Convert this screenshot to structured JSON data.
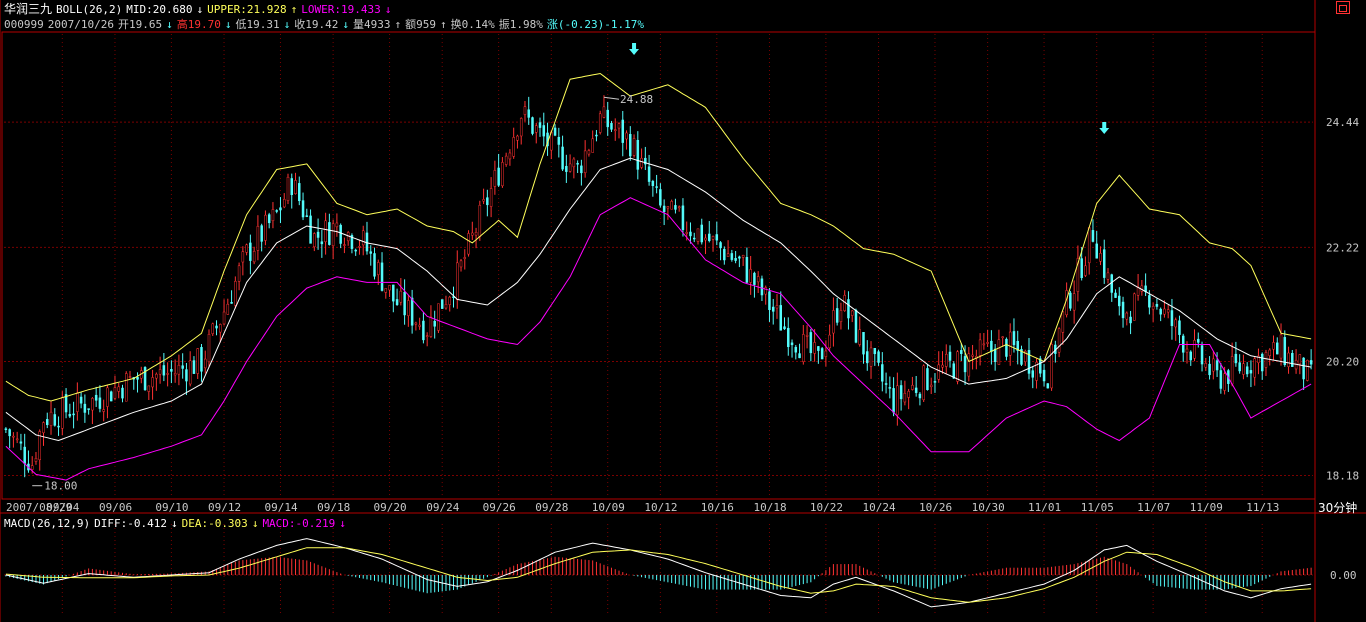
{
  "header": {
    "name": "华润三九",
    "indicator": "BOLL(26,2)",
    "mid": "MID:20.680",
    "upper": "UPPER:21.928",
    "lower": "LOWER:19.433",
    "code": "000999",
    "date": "2007/10/26",
    "open": "开19.65",
    "high": "高19.70",
    "low": "低19.31",
    "close": "收19.42",
    "volume": "量4933",
    "amount": "额959",
    "turnover": "换0.14%",
    "amplitude": "振1.98%",
    "change": "涨(-0.23)-1.17%"
  },
  "macd_header": {
    "label": "MACD(26,12,9)",
    "diff": "DIFF:-0.412",
    "dea": "DEA:-0.303",
    "macd": "MACD:-0.219"
  },
  "period_label": "30分钟",
  "corner_icon": "restore-icon",
  "colors": {
    "up": "#ff3232",
    "down": "#54fcfc",
    "upper": "#ffff5a",
    "mid": "#ffffff",
    "lower": "#ff00ff",
    "frame": "#b40000",
    "grid": "#7a0000",
    "axis_text": "#c8c8c8"
  },
  "chart_data": [
    {
      "type": "candlestick",
      "name": "price",
      "x_ticks": [
        "2007/08/29",
        "09/04",
        "09/06",
        "09/10",
        "09/12",
        "09/14",
        "09/18",
        "09/20",
        "09/24",
        "09/26",
        "09/28",
        "10/09",
        "10/12",
        "10/16",
        "10/18",
        "10/22",
        "10/24",
        "10/26",
        "10/30",
        "11/01",
        "11/05",
        "11/07",
        "11/09",
        "11/13"
      ],
      "y_ticks": [
        18.18,
        20.2,
        22.22,
        24.44
      ],
      "ylim": [
        17.8,
        26.0
      ],
      "grid": true,
      "annotations": [
        {
          "text": "24.88",
          "value": 24.88,
          "label": "high"
        },
        {
          "text": "18.00",
          "value": 18.0,
          "label": "low"
        }
      ],
      "anchors": [
        [
          0,
          19.0
        ],
        [
          7,
          18.4
        ],
        [
          10,
          19.2
        ],
        [
          23,
          19.5
        ],
        [
          34,
          19.9
        ],
        [
          44,
          20.0
        ],
        [
          52,
          20.2
        ],
        [
          58,
          21.1
        ],
        [
          64,
          22.1
        ],
        [
          72,
          22.8
        ],
        [
          76,
          23.4
        ],
        [
          82,
          22.4
        ],
        [
          88,
          22.6
        ],
        [
          95,
          22.3
        ],
        [
          103,
          21.3
        ],
        [
          112,
          20.8
        ],
        [
          120,
          21.7
        ],
        [
          130,
          23.4
        ],
        [
          137,
          24.6
        ],
        [
          145,
          24.0
        ],
        [
          152,
          23.6
        ],
        [
          158,
          24.5
        ],
        [
          166,
          24.1
        ],
        [
          174,
          22.9
        ],
        [
          186,
          22.4
        ],
        [
          196,
          21.9
        ],
        [
          207,
          20.8
        ],
        [
          216,
          20.2
        ],
        [
          222,
          21.3
        ],
        [
          229,
          20.3
        ],
        [
          236,
          19.5
        ],
        [
          247,
          20.0
        ],
        [
          258,
          20.3
        ],
        [
          266,
          20.5
        ],
        [
          277,
          20.0
        ],
        [
          282,
          21.2
        ],
        [
          289,
          22.5
        ],
        [
          296,
          21.0
        ],
        [
          304,
          21.4
        ],
        [
          314,
          20.5
        ],
        [
          322,
          19.9
        ],
        [
          331,
          20.2
        ],
        [
          339,
          20.4
        ],
        [
          347,
          19.9
        ]
      ],
      "boll": {
        "upper": [
          [
            0,
            19.85
          ],
          [
            6,
            19.6
          ],
          [
            12,
            19.5
          ],
          [
            22,
            19.7
          ],
          [
            34,
            19.9
          ],
          [
            44,
            20.3
          ],
          [
            52,
            20.7
          ],
          [
            58,
            21.8
          ],
          [
            64,
            22.8
          ],
          [
            72,
            23.6
          ],
          [
            80,
            23.7
          ],
          [
            88,
            23.0
          ],
          [
            96,
            22.8
          ],
          [
            104,
            22.9
          ],
          [
            112,
            22.6
          ],
          [
            119,
            22.5
          ],
          [
            124,
            22.3
          ],
          [
            131,
            22.7
          ],
          [
            136,
            22.4
          ],
          [
            142,
            23.7
          ],
          [
            150,
            25.2
          ],
          [
            158,
            25.3
          ],
          [
            166,
            24.9
          ],
          [
            176,
            25.1
          ],
          [
            186,
            24.7
          ],
          [
            196,
            23.8
          ],
          [
            206,
            23.0
          ],
          [
            214,
            22.8
          ],
          [
            220,
            22.6
          ],
          [
            228,
            22.2
          ],
          [
            236,
            22.1
          ],
          [
            246,
            21.8
          ],
          [
            256,
            20.2
          ],
          [
            266,
            20.5
          ],
          [
            276,
            20.2
          ],
          [
            282,
            21.3
          ],
          [
            290,
            23.0
          ],
          [
            296,
            23.5
          ],
          [
            304,
            22.9
          ],
          [
            312,
            22.8
          ],
          [
            320,
            22.3
          ],
          [
            326,
            22.2
          ],
          [
            331,
            21.9
          ],
          [
            339,
            20.7
          ],
          [
            347,
            20.6
          ]
        ],
        "mid": [
          [
            0,
            19.3
          ],
          [
            8,
            18.9
          ],
          [
            14,
            18.8
          ],
          [
            22,
            19.0
          ],
          [
            34,
            19.3
          ],
          [
            44,
            19.5
          ],
          [
            52,
            19.8
          ],
          [
            58,
            20.7
          ],
          [
            64,
            21.6
          ],
          [
            72,
            22.3
          ],
          [
            80,
            22.6
          ],
          [
            88,
            22.5
          ],
          [
            96,
            22.3
          ],
          [
            104,
            22.2
          ],
          [
            112,
            21.8
          ],
          [
            120,
            21.3
          ],
          [
            128,
            21.2
          ],
          [
            136,
            21.6
          ],
          [
            142,
            22.1
          ],
          [
            150,
            22.9
          ],
          [
            158,
            23.6
          ],
          [
            166,
            23.8
          ],
          [
            176,
            23.6
          ],
          [
            186,
            23.2
          ],
          [
            196,
            22.7
          ],
          [
            206,
            22.3
          ],
          [
            214,
            21.8
          ],
          [
            220,
            21.4
          ],
          [
            228,
            21.0
          ],
          [
            236,
            20.6
          ],
          [
            246,
            20.1
          ],
          [
            256,
            19.8
          ],
          [
            266,
            19.9
          ],
          [
            276,
            20.2
          ],
          [
            282,
            20.6
          ],
          [
            290,
            21.4
          ],
          [
            296,
            21.7
          ],
          [
            304,
            21.4
          ],
          [
            312,
            21.1
          ],
          [
            322,
            20.6
          ],
          [
            331,
            20.3
          ],
          [
            339,
            20.2
          ],
          [
            347,
            20.1
          ]
        ],
        "lower": [
          [
            0,
            18.7
          ],
          [
            8,
            18.2
          ],
          [
            16,
            18.1
          ],
          [
            22,
            18.3
          ],
          [
            34,
            18.5
          ],
          [
            44,
            18.7
          ],
          [
            52,
            18.9
          ],
          [
            58,
            19.5
          ],
          [
            64,
            20.2
          ],
          [
            72,
            21.0
          ],
          [
            80,
            21.5
          ],
          [
            88,
            21.7
          ],
          [
            96,
            21.6
          ],
          [
            104,
            21.6
          ],
          [
            112,
            21.0
          ],
          [
            120,
            20.8
          ],
          [
            128,
            20.6
          ],
          [
            136,
            20.5
          ],
          [
            142,
            20.9
          ],
          [
            150,
            21.7
          ],
          [
            158,
            22.8
          ],
          [
            166,
            23.1
          ],
          [
            176,
            22.8
          ],
          [
            186,
            22.0
          ],
          [
            196,
            21.6
          ],
          [
            206,
            21.4
          ],
          [
            214,
            20.8
          ],
          [
            220,
            20.3
          ],
          [
            228,
            19.8
          ],
          [
            236,
            19.3
          ],
          [
            246,
            18.6
          ],
          [
            256,
            18.6
          ],
          [
            266,
            19.2
          ],
          [
            276,
            19.5
          ],
          [
            282,
            19.4
          ],
          [
            290,
            19.0
          ],
          [
            296,
            18.8
          ],
          [
            304,
            19.2
          ],
          [
            312,
            20.5
          ],
          [
            320,
            20.5
          ],
          [
            326,
            19.8
          ],
          [
            331,
            19.2
          ],
          [
            339,
            19.5
          ],
          [
            347,
            19.8
          ]
        ]
      }
    },
    {
      "type": "line",
      "name": "MACD(26,12,9)",
      "y_ticks": [
        0.0
      ],
      "ylim": [
        -0.9,
        0.9
      ],
      "series": [
        {
          "name": "DIFF",
          "values": [
            [
              0,
              0.0
            ],
            [
              10,
              -0.18
            ],
            [
              22,
              0.03
            ],
            [
              34,
              -0.05
            ],
            [
              44,
              0.0
            ],
            [
              54,
              0.05
            ],
            [
              62,
              0.35
            ],
            [
              72,
              0.65
            ],
            [
              80,
              0.8
            ],
            [
              90,
              0.6
            ],
            [
              100,
              0.35
            ],
            [
              112,
              -0.1
            ],
            [
              120,
              -0.25
            ],
            [
              128,
              -0.15
            ],
            [
              136,
              0.1
            ],
            [
              146,
              0.5
            ],
            [
              156,
              0.7
            ],
            [
              166,
              0.55
            ],
            [
              176,
              0.35
            ],
            [
              186,
              0.05
            ],
            [
              196,
              -0.2
            ],
            [
              206,
              -0.45
            ],
            [
              214,
              -0.5
            ],
            [
              220,
              -0.2
            ],
            [
              226,
              -0.05
            ],
            [
              236,
              -0.35
            ],
            [
              246,
              -0.7
            ],
            [
              256,
              -0.6
            ],
            [
              266,
              -0.4
            ],
            [
              276,
              -0.2
            ],
            [
              284,
              0.1
            ],
            [
              292,
              0.55
            ],
            [
              298,
              0.65
            ],
            [
              306,
              0.3
            ],
            [
              316,
              -0.05
            ],
            [
              324,
              -0.35
            ],
            [
              331,
              -0.5
            ],
            [
              339,
              -0.3
            ],
            [
              347,
              -0.2
            ]
          ]
        },
        {
          "name": "DEA",
          "values": [
            [
              0,
              0.02
            ],
            [
              10,
              -0.05
            ],
            [
              22,
              -0.06
            ],
            [
              34,
              -0.06
            ],
            [
              44,
              -0.02
            ],
            [
              54,
              0.0
            ],
            [
              62,
              0.15
            ],
            [
              72,
              0.4
            ],
            [
              80,
              0.6
            ],
            [
              90,
              0.6
            ],
            [
              100,
              0.45
            ],
            [
              112,
              0.15
            ],
            [
              120,
              -0.05
            ],
            [
              128,
              -0.12
            ],
            [
              136,
              -0.05
            ],
            [
              146,
              0.25
            ],
            [
              156,
              0.5
            ],
            [
              166,
              0.55
            ],
            [
              176,
              0.45
            ],
            [
              186,
              0.25
            ],
            [
              196,
              0.0
            ],
            [
              206,
              -0.25
            ],
            [
              214,
              -0.4
            ],
            [
              220,
              -0.35
            ],
            [
              226,
              -0.2
            ],
            [
              236,
              -0.25
            ],
            [
              246,
              -0.5
            ],
            [
              256,
              -0.6
            ],
            [
              266,
              -0.5
            ],
            [
              276,
              -0.3
            ],
            [
              284,
              -0.05
            ],
            [
              292,
              0.3
            ],
            [
              298,
              0.5
            ],
            [
              306,
              0.45
            ],
            [
              316,
              0.15
            ],
            [
              324,
              -0.15
            ],
            [
              331,
              -0.35
            ],
            [
              339,
              -0.35
            ],
            [
              347,
              -0.3
            ]
          ]
        }
      ]
    }
  ]
}
